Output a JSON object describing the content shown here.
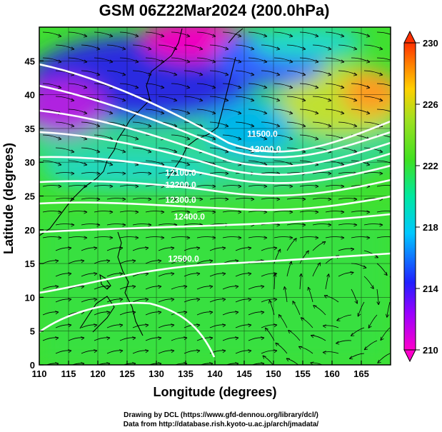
{
  "title": "GSM 06Z22Mar2024 (200.0hPa)",
  "xlabel": "Longitude (degrees)",
  "ylabel": "Latitude  (degrees)",
  "x_ticks": [
    "110",
    "115",
    "120",
    "125",
    "130",
    "135",
    "140",
    "145",
    "150",
    "155",
    "160",
    "165"
  ],
  "y_ticks": [
    "0",
    "5",
    "10",
    "15",
    "20",
    "25",
    "30",
    "35",
    "40",
    "45"
  ],
  "colorbar_ticks": [
    "210",
    "214",
    "218",
    "222",
    "226",
    "230"
  ],
  "contour_labels": [
    {
      "text": "11500.0",
      "lon": 145.5,
      "lat": 33.8
    },
    {
      "text": "12000.0",
      "lon": 146,
      "lat": 31.5
    },
    {
      "text": "12100.0",
      "lon": 131.5,
      "lat": 28.0
    },
    {
      "text": "12200.0",
      "lon": 131.5,
      "lat": 26.2
    },
    {
      "text": "12300.0",
      "lon": 131.5,
      "lat": 24.0
    },
    {
      "text": "12400.0",
      "lon": 133.0,
      "lat": 21.5
    },
    {
      "text": "12500.0",
      "lon": 132.0,
      "lat": 15.3
    }
  ],
  "credits": [
    "Drawing by DCL (https://www.gfd-dennou.org/library/dcl/)",
    "Data from http://database.rish.kyoto-u.ac.jp/arch/jmadata/"
  ],
  "colors": {
    "frame": "#000000",
    "contour": "#ffffff"
  }
}
